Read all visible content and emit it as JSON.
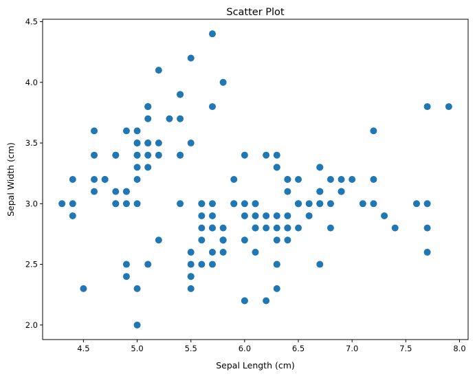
{
  "chart_data": {
    "type": "scatter",
    "title": "Scatter Plot",
    "xlabel": "Sepal Length (cm)",
    "ylabel": "Sepal Width (cm)",
    "xlim": [
      4.12,
      8.08
    ],
    "ylim": [
      1.88,
      4.52
    ],
    "xticks": [
      4.5,
      5.0,
      5.5,
      6.0,
      6.5,
      7.0,
      7.5,
      8.0
    ],
    "xtick_labels": [
      "4.5",
      "5.0",
      "5.5",
      "6.0",
      "6.5",
      "7.0",
      "7.5",
      "8.0"
    ],
    "yticks": [
      2.0,
      2.5,
      3.0,
      3.5,
      4.0,
      4.5
    ],
    "ytick_labels": [
      "2.0",
      "2.5",
      "3.0",
      "3.5",
      "4.0",
      "4.5"
    ],
    "grid": false,
    "color": "#1f77b4",
    "x": [
      5.1,
      4.9,
      4.7,
      4.6,
      5.0,
      5.4,
      4.6,
      5.0,
      4.4,
      4.9,
      5.4,
      4.8,
      4.8,
      4.3,
      5.8,
      5.7,
      5.4,
      5.1,
      5.7,
      5.1,
      5.4,
      5.1,
      4.6,
      5.1,
      4.8,
      5.0,
      5.0,
      5.2,
      5.2,
      4.7,
      4.8,
      5.4,
      5.2,
      5.5,
      4.9,
      5.0,
      5.5,
      4.9,
      4.4,
      5.1,
      5.0,
      4.5,
      4.4,
      5.0,
      5.1,
      4.8,
      5.1,
      4.6,
      5.3,
      5.0,
      7.0,
      6.4,
      6.9,
      5.5,
      6.5,
      5.7,
      6.3,
      4.9,
      6.6,
      5.2,
      5.0,
      5.9,
      6.0,
      6.1,
      5.6,
      6.7,
      5.6,
      5.8,
      6.2,
      5.6,
      5.9,
      6.1,
      6.3,
      6.1,
      6.4,
      6.6,
      6.8,
      6.7,
      6.0,
      5.7,
      5.5,
      5.5,
      5.8,
      6.0,
      5.4,
      6.0,
      6.7,
      6.3,
      5.6,
      5.5,
      5.5,
      6.1,
      5.8,
      5.0,
      5.6,
      5.7,
      5.7,
      6.2,
      5.1,
      5.7,
      6.3,
      5.8,
      7.1,
      6.3,
      6.5,
      7.6,
      4.9,
      7.3,
      6.7,
      7.2,
      6.5,
      6.4,
      6.8,
      5.7,
      5.8,
      6.4,
      6.5,
      7.7,
      7.7,
      6.0,
      6.9,
      5.6,
      7.7,
      6.3,
      6.7,
      7.2,
      6.2,
      6.1,
      6.4,
      7.2,
      7.4,
      7.9,
      6.4,
      6.3,
      6.1,
      7.7,
      6.3,
      6.4,
      6.0,
      6.9,
      6.7,
      6.9,
      5.8,
      6.8,
      6.7,
      6.7,
      6.3,
      6.5,
      6.2,
      5.9
    ],
    "y": [
      3.5,
      3.0,
      3.2,
      3.1,
      3.6,
      3.9,
      3.4,
      3.4,
      2.9,
      3.1,
      3.7,
      3.4,
      3.0,
      3.0,
      4.0,
      4.4,
      3.9,
      3.5,
      3.8,
      3.8,
      3.4,
      3.7,
      3.6,
      3.3,
      3.4,
      3.0,
      3.4,
      3.5,
      3.4,
      3.2,
      3.1,
      3.4,
      4.1,
      4.2,
      3.1,
      3.2,
      3.5,
      3.6,
      3.0,
      3.4,
      3.5,
      2.3,
      3.2,
      3.5,
      3.8,
      3.0,
      3.8,
      3.2,
      3.7,
      3.3,
      3.2,
      3.2,
      3.1,
      2.3,
      2.8,
      2.8,
      3.3,
      2.4,
      2.9,
      2.7,
      2.0,
      3.0,
      2.2,
      2.9,
      2.9,
      3.1,
      3.0,
      2.7,
      2.2,
      2.5,
      3.2,
      2.8,
      2.5,
      2.8,
      2.9,
      3.0,
      2.8,
      3.0,
      2.9,
      2.6,
      2.4,
      2.4,
      2.7,
      2.7,
      3.0,
      3.4,
      3.1,
      2.3,
      3.0,
      2.5,
      2.6,
      3.0,
      2.6,
      2.3,
      2.7,
      3.0,
      2.9,
      2.9,
      2.5,
      2.8,
      3.3,
      2.7,
      3.0,
      2.9,
      3.0,
      3.0,
      2.5,
      2.9,
      2.5,
      3.6,
      3.2,
      2.7,
      3.0,
      2.5,
      2.8,
      3.2,
      3.0,
      3.8,
      2.6,
      2.2,
      3.2,
      2.8,
      2.8,
      2.7,
      3.3,
      3.2,
      2.8,
      3.0,
      2.8,
      3.0,
      2.8,
      3.8,
      2.8,
      2.8,
      2.6,
      3.0,
      3.4,
      3.1,
      3.0,
      3.1,
      3.1,
      3.1,
      2.7,
      3.2,
      3.3,
      3.0,
      2.5,
      3.0,
      3.4,
      3.0
    ]
  }
}
